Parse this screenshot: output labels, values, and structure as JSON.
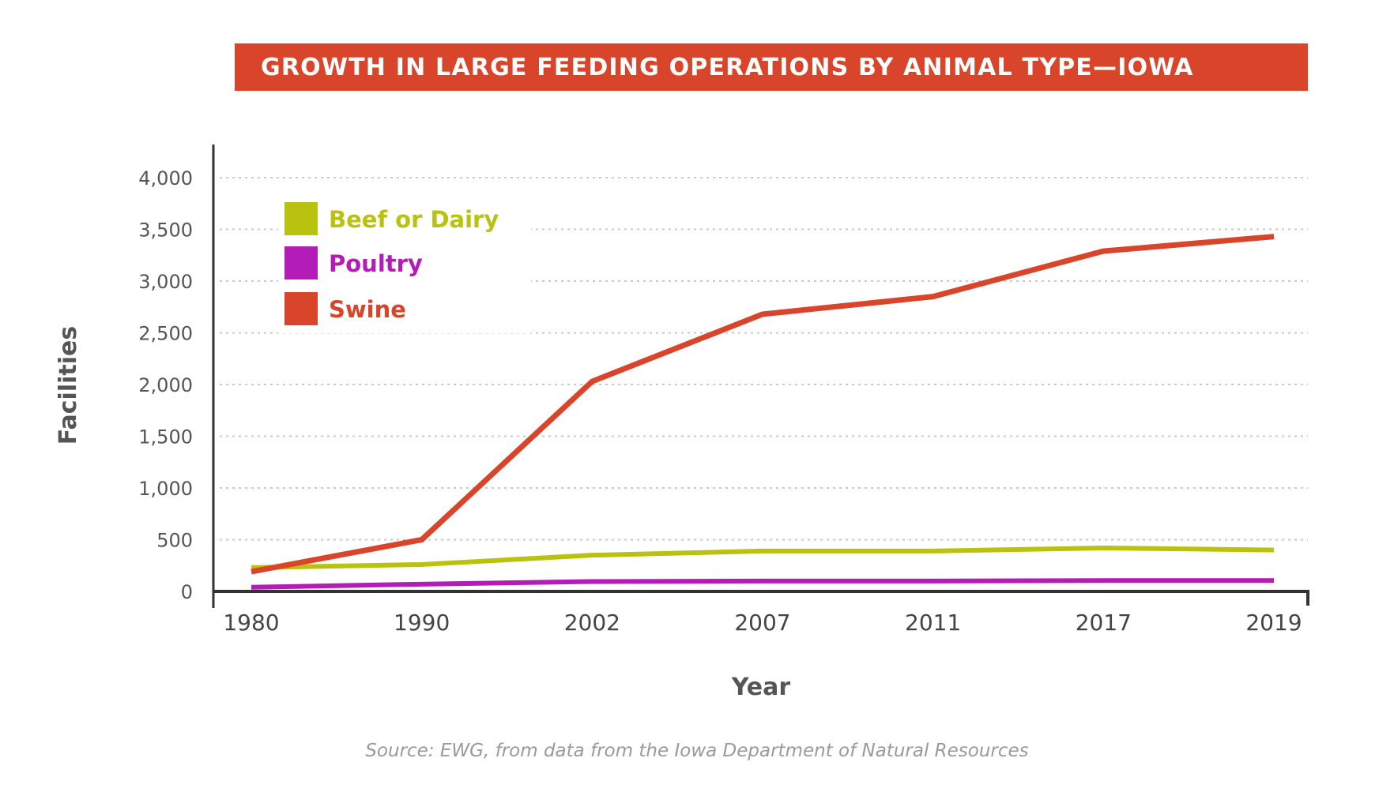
{
  "chart_data": {
    "type": "line",
    "title": "GROWTH IN LARGE FEEDING OPERATIONS BY ANIMAL TYPE—IOWA",
    "xlabel": "Year",
    "ylabel": "Facilities",
    "x": [
      "1980",
      "1990",
      "2002",
      "2007",
      "2011",
      "2017",
      "2019"
    ],
    "ylim": [
      0,
      4000
    ],
    "yticks": [
      0,
      500,
      1000,
      1500,
      2000,
      2500,
      3000,
      3500,
      4000
    ],
    "ytick_labels": [
      "0",
      "500",
      "1,000",
      "1,500",
      "2,000",
      "2,500",
      "3,000",
      "3,500",
      "4,000"
    ],
    "grid": "horizontal-dotted",
    "legend_position": "top-left",
    "series": [
      {
        "name": "Beef or Dairy",
        "color": "#b9c20e",
        "values": [
          230,
          260,
          350,
          390,
          390,
          420,
          400
        ]
      },
      {
        "name": "Poultry",
        "color": "#b31cb6",
        "values": [
          40,
          70,
          95,
          100,
          100,
          105,
          105
        ]
      },
      {
        "name": "Swine",
        "color": "#d8452b",
        "values": [
          190,
          500,
          2030,
          2680,
          2850,
          3290,
          3430
        ]
      }
    ],
    "source": "Source: EWG, from data from the Iowa Department of Natural Resources"
  }
}
